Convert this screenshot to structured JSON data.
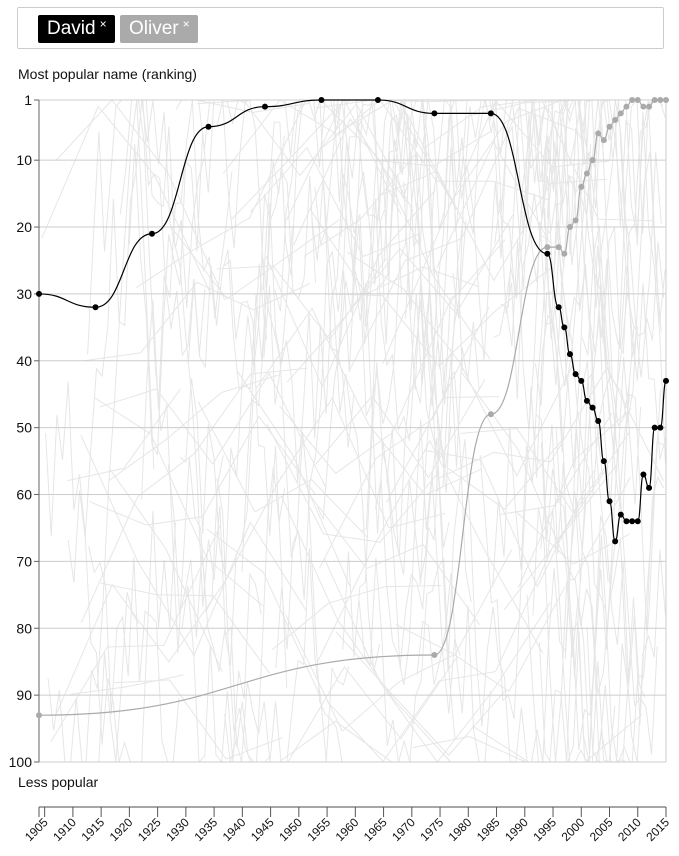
{
  "selection": {
    "tags": [
      {
        "label": "David",
        "remove": "×",
        "color": "#000000"
      },
      {
        "label": "Oliver",
        "remove": "×",
        "color": "#aaaaaa"
      }
    ]
  },
  "chart_data": {
    "type": "line",
    "ylabel": "Most popular name (ranking)",
    "ylabel_bottom": "Less popular",
    "ylim": [
      1,
      100
    ],
    "y_reversed": true,
    "xlim": [
      1904,
      2015
    ],
    "yticks": [
      1,
      10,
      20,
      30,
      40,
      50,
      60,
      70,
      80,
      90,
      100
    ],
    "xticks": [
      1905,
      1910,
      1915,
      1920,
      1925,
      1930,
      1935,
      1940,
      1945,
      1950,
      1955,
      1960,
      1965,
      1970,
      1975,
      1980,
      1985,
      1990,
      1995,
      2000,
      2005,
      2010,
      2015
    ],
    "grid": true,
    "background_lines_color": "#e6e6e6",
    "series": [
      {
        "name": "David",
        "color": "#000000",
        "x": [
          1904,
          1914,
          1924,
          1934,
          1944,
          1954,
          1964,
          1974,
          1984,
          1994,
          1996,
          1997,
          1998,
          1999,
          2000,
          2001,
          2002,
          2003,
          2004,
          2005,
          2006,
          2007,
          2008,
          2009,
          2010,
          2011,
          2012,
          2013,
          2014,
          2015
        ],
        "y": [
          30,
          32,
          21,
          5,
          2,
          1,
          1,
          3,
          3,
          24,
          32,
          35,
          39,
          42,
          43,
          46,
          47,
          49,
          55,
          61,
          67,
          63,
          64,
          64,
          64,
          57,
          59,
          50,
          50,
          43
        ]
      },
      {
        "name": "Oliver",
        "color": "#aaaaaa",
        "x": [
          1904,
          1974,
          1984,
          1994,
          1996,
          1997,
          1998,
          1999,
          2000,
          2001,
          2002,
          2003,
          2004,
          2005,
          2006,
          2007,
          2008,
          2009,
          2010,
          2011,
          2012,
          2013,
          2014,
          2015
        ],
        "y": [
          93,
          84,
          48,
          23,
          23,
          24,
          20,
          19,
          14,
          12,
          10,
          6,
          7,
          5,
          4,
          3,
          2,
          1,
          1,
          2,
          2,
          1,
          1,
          1
        ]
      }
    ]
  }
}
